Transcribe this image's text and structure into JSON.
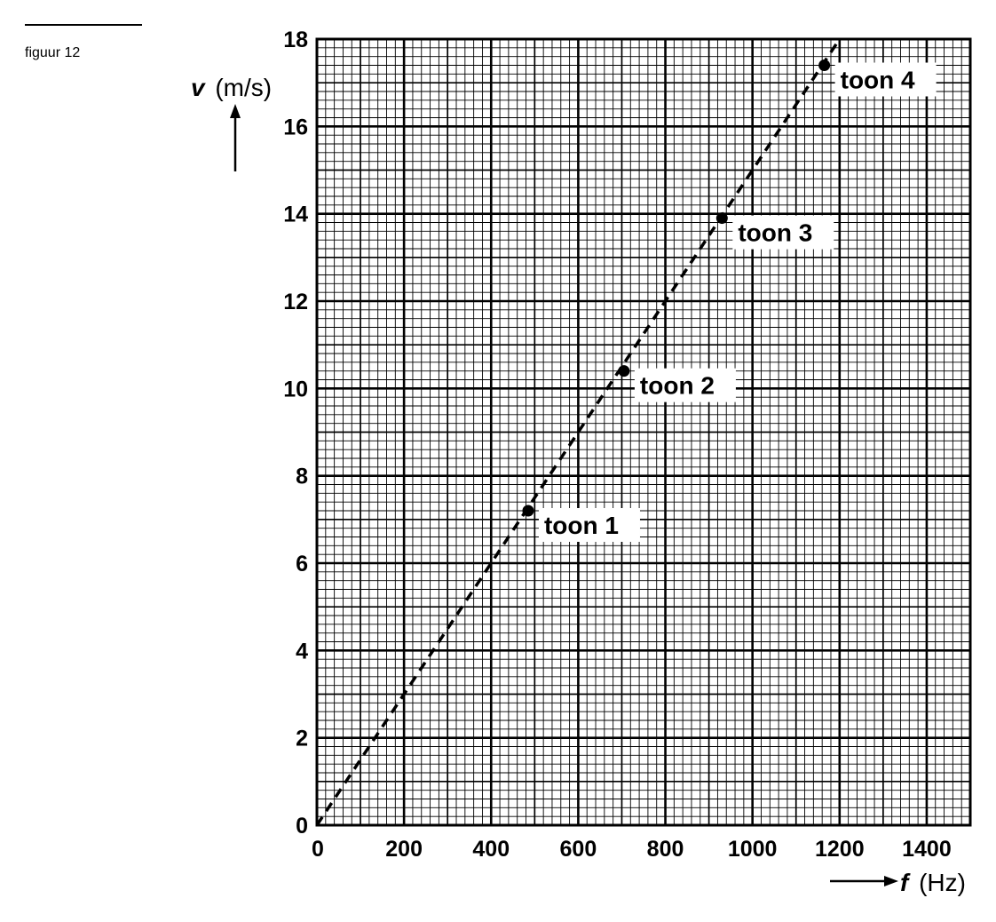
{
  "figure": {
    "caption": "figuur 12"
  },
  "chart_data": {
    "type": "scatter",
    "title": "",
    "xlabel": {
      "symbol": "f",
      "unit": "(Hz)"
    },
    "ylabel": {
      "symbol": "v",
      "unit": "(m/s)"
    },
    "xlim": [
      0,
      1500
    ],
    "ylim": [
      0,
      18
    ],
    "x_ticks": [
      0,
      200,
      400,
      600,
      800,
      1000,
      1200,
      1400
    ],
    "y_ticks": [
      0,
      2,
      4,
      6,
      8,
      10,
      12,
      14,
      16,
      18
    ],
    "grid": true,
    "points": [
      {
        "label": "toon 1",
        "x": 485,
        "y": 7.2
      },
      {
        "label": "toon 2",
        "x": 705,
        "y": 10.4
      },
      {
        "label": "toon 3",
        "x": 930,
        "y": 13.9
      },
      {
        "label": "toon 4",
        "x": 1165,
        "y": 17.4
      }
    ],
    "trendline": {
      "style": "dashed",
      "from": [
        0,
        0
      ],
      "to": [
        1200,
        18
      ]
    }
  }
}
